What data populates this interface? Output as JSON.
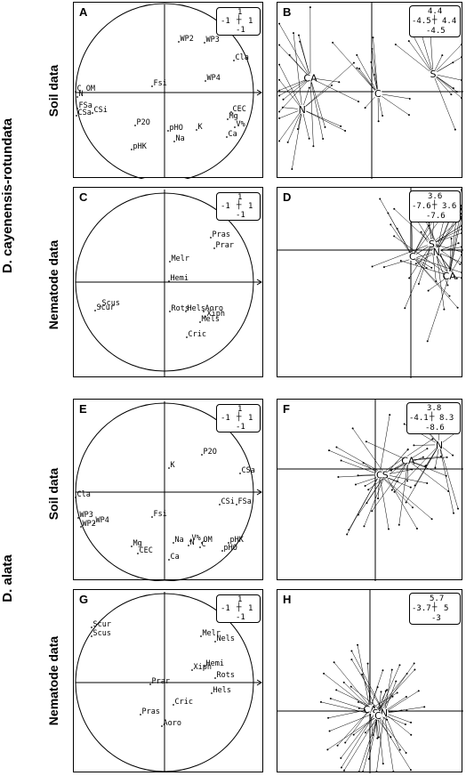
{
  "group_labels": [
    "D. cayenensis-rotundata",
    "D. alata"
  ],
  "row_labels": [
    "Soil data",
    "Nematode data",
    "Soil data",
    "Nematode data"
  ],
  "panels": [
    {
      "letter": "A",
      "scale": {
        "top": "1",
        "left": "-1",
        "right": "1",
        "bottom": "-1"
      }
    },
    {
      "letter": "B",
      "scale": {
        "top": "4.4",
        "left": "-4.5",
        "right": "4.4",
        "bottom": "-4.5"
      }
    },
    {
      "letter": "C",
      "scale": {
        "top": "1",
        "left": "-1",
        "right": "1",
        "bottom": "-1"
      }
    },
    {
      "letter": "D",
      "scale": {
        "top": "3.6",
        "left": "-7.6",
        "right": "3.6",
        "bottom": "-7.6"
      }
    },
    {
      "letter": "E",
      "scale": {
        "top": "1",
        "left": "-1",
        "right": "1",
        "bottom": "-1"
      }
    },
    {
      "letter": "F",
      "scale": {
        "top": "3.8",
        "left": "-4.1",
        "right": "8.3",
        "bottom": "-8.6"
      }
    },
    {
      "letter": "G",
      "scale": {
        "top": "1",
        "left": "-1",
        "right": "1",
        "bottom": "-1"
      }
    },
    {
      "letter": "H",
      "scale": {
        "top": "5.7",
        "left": "-3.7",
        "right": "5",
        "bottom": "-3"
      }
    }
  ],
  "chart_data": [
    {
      "panel": "A",
      "type": "scatter",
      "x_range": [
        -1,
        1
      ],
      "y_range": [
        -1,
        1
      ],
      "points": [
        {
          "label": "WP2",
          "x": 0.16,
          "y": 0.57
        },
        {
          "label": "WP3",
          "x": 0.45,
          "y": 0.56
        },
        {
          "label": "Cla",
          "x": 0.78,
          "y": 0.36
        },
        {
          "label": "WP4",
          "x": 0.46,
          "y": 0.13
        },
        {
          "label": "Fsi",
          "x": -0.14,
          "y": 0.07
        },
        {
          "label": "C_OM",
          "x": -1.0,
          "y": 0.01
        },
        {
          "label": "N",
          "x": -0.98,
          "y": -0.05
        },
        {
          "label": "FSa",
          "x": -0.98,
          "y": -0.18
        },
        {
          "label": "CSi",
          "x": -0.81,
          "y": -0.23
        },
        {
          "label": "CSa",
          "x": -0.99,
          "y": -0.26
        },
        {
          "label": "P2O",
          "x": -0.33,
          "y": -0.37
        },
        {
          "label": "CEC",
          "x": 0.75,
          "y": -0.22
        },
        {
          "label": "Mg",
          "x": 0.71,
          "y": -0.3
        },
        {
          "label": "K",
          "x": 0.36,
          "y": -0.42
        },
        {
          "label": "V%",
          "x": 0.79,
          "y": -0.39
        },
        {
          "label": "Ca",
          "x": 0.7,
          "y": -0.5
        },
        {
          "label": "pHO",
          "x": 0.04,
          "y": -0.43
        },
        {
          "label": "Na",
          "x": 0.11,
          "y": -0.55
        },
        {
          "label": "pHK",
          "x": -0.37,
          "y": -0.64
        }
      ]
    },
    {
      "panel": "B",
      "type": "scatter",
      "x_range": [
        -4.5,
        4.4
      ],
      "y_range": [
        -4.5,
        4.4
      ],
      "centroids": [
        {
          "label": "CA",
          "x": -3.0,
          "y": 0.7
        },
        {
          "label": "N",
          "x": -3.4,
          "y": -0.9
        },
        {
          "label": "C",
          "x": 0.3,
          "y": -0.1
        },
        {
          "label": "S",
          "x": 3.0,
          "y": 0.9
        }
      ]
    },
    {
      "panel": "C",
      "type": "scatter",
      "x_range": [
        -1,
        1
      ],
      "y_range": [
        -1,
        1
      ],
      "points": [
        {
          "label": "Pras",
          "x": 0.52,
          "y": 0.5
        },
        {
          "label": "Prar",
          "x": 0.56,
          "y": 0.38
        },
        {
          "label": "Melr",
          "x": 0.06,
          "y": 0.23
        },
        {
          "label": "Hemi",
          "x": 0.05,
          "y": 0.01
        },
        {
          "label": "Scus",
          "x": -0.72,
          "y": -0.27
        },
        {
          "label": "Scur",
          "x": -0.78,
          "y": -0.32
        },
        {
          "label": "Rots",
          "x": 0.06,
          "y": -0.33
        },
        {
          "label": "Hels",
          "x": 0.24,
          "y": -0.33
        },
        {
          "label": "Aoro",
          "x": 0.44,
          "y": -0.33
        },
        {
          "label": "Xiph",
          "x": 0.46,
          "y": -0.39
        },
        {
          "label": "Mels",
          "x": 0.4,
          "y": -0.45
        },
        {
          "label": "Cric",
          "x": 0.25,
          "y": -0.62
        }
      ]
    },
    {
      "panel": "D",
      "type": "scatter",
      "x_range": [
        -7.6,
        3.6
      ],
      "y_range": [
        -7.6,
        3.6
      ],
      "centroids": [
        {
          "label": "S",
          "x": 1.3,
          "y": 0.4
        },
        {
          "label": "N",
          "x": 1.6,
          "y": -0.1
        },
        {
          "label": "C",
          "x": 0.1,
          "y": -0.4
        },
        {
          "label": "CA",
          "x": 2.4,
          "y": -1.6
        }
      ]
    },
    {
      "panel": "E",
      "type": "scatter",
      "x_range": [
        -1,
        1
      ],
      "y_range": [
        -1,
        1
      ],
      "points": [
        {
          "label": "P2O",
          "x": 0.42,
          "y": 0.42
        },
        {
          "label": "K",
          "x": 0.05,
          "y": 0.27
        },
        {
          "label": "CSa",
          "x": 0.85,
          "y": 0.21
        },
        {
          "label": "Cla",
          "x": -1.0,
          "y": -0.06
        },
        {
          "label": "CSi",
          "x": 0.62,
          "y": -0.14
        },
        {
          "label": "FSa",
          "x": 0.81,
          "y": -0.14
        },
        {
          "label": "Fsi",
          "x": -0.14,
          "y": -0.28
        },
        {
          "label": "WP3",
          "x": -0.97,
          "y": -0.29
        },
        {
          "label": "WP4",
          "x": -0.79,
          "y": -0.35
        },
        {
          "label": "WP2",
          "x": -0.94,
          "y": -0.39
        },
        {
          "label": "Na",
          "x": 0.1,
          "y": -0.57
        },
        {
          "label": "V%",
          "x": 0.29,
          "y": -0.55
        },
        {
          "label": "OM",
          "x": 0.42,
          "y": -0.57
        },
        {
          "label": "N",
          "x": 0.27,
          "y": -0.6
        },
        {
          "label": "C",
          "x": 0.4,
          "y": -0.62
        },
        {
          "label": "pHK",
          "x": 0.72,
          "y": -0.57
        },
        {
          "label": "pHO",
          "x": 0.65,
          "y": -0.66
        },
        {
          "label": "Mg",
          "x": -0.37,
          "y": -0.61
        },
        {
          "label": "CEC",
          "x": -0.3,
          "y": -0.69
        },
        {
          "label": "Ca",
          "x": 0.05,
          "y": -0.76
        }
      ]
    },
    {
      "panel": "F",
      "type": "scatter",
      "x_range": [
        -4.1,
        8.3
      ],
      "y_range": [
        -8.6,
        3.8
      ],
      "centroids": [
        {
          "label": "N",
          "x": 4.5,
          "y": 1.7
        },
        {
          "label": "CA",
          "x": 2.3,
          "y": 0.6
        },
        {
          "label": "C",
          "x": 0.3,
          "y": -0.4
        },
        {
          "label": "S",
          "x": 0.7,
          "y": -0.4
        }
      ]
    },
    {
      "panel": "G",
      "type": "scatter",
      "x_range": [
        -1,
        1
      ],
      "y_range": [
        -1,
        1
      ],
      "points": [
        {
          "label": "Scur",
          "x": -0.82,
          "y": 0.62
        },
        {
          "label": "Scus",
          "x": -0.82,
          "y": 0.52
        },
        {
          "label": "Melr",
          "x": 0.41,
          "y": 0.52
        },
        {
          "label": "Nels",
          "x": 0.57,
          "y": 0.46
        },
        {
          "label": "Xiph",
          "x": 0.31,
          "y": 0.14
        },
        {
          "label": "Hemi",
          "x": 0.45,
          "y": 0.18
        },
        {
          "label": "Rots",
          "x": 0.57,
          "y": 0.05
        },
        {
          "label": "Prar",
          "x": -0.16,
          "y": -0.02
        },
        {
          "label": "Hels",
          "x": 0.53,
          "y": -0.12
        },
        {
          "label": "Cric",
          "x": 0.1,
          "y": -0.25
        },
        {
          "label": "Pras",
          "x": -0.27,
          "y": -0.36
        },
        {
          "label": "Aoro",
          "x": -0.03,
          "y": -0.49
        }
      ]
    },
    {
      "panel": "H",
      "type": "scatter",
      "x_range": [
        -3.7,
        5
      ],
      "y_range": [
        -3,
        5.7
      ],
      "centroids": [
        {
          "label": "CA",
          "x": 0.0,
          "y": 0.1
        },
        {
          "label": "S",
          "x": 0.3,
          "y": -0.1
        },
        {
          "label": "N",
          "x": 0.8,
          "y": -0.1
        },
        {
          "label": "C",
          "x": 0.45,
          "y": -0.25
        }
      ]
    }
  ]
}
